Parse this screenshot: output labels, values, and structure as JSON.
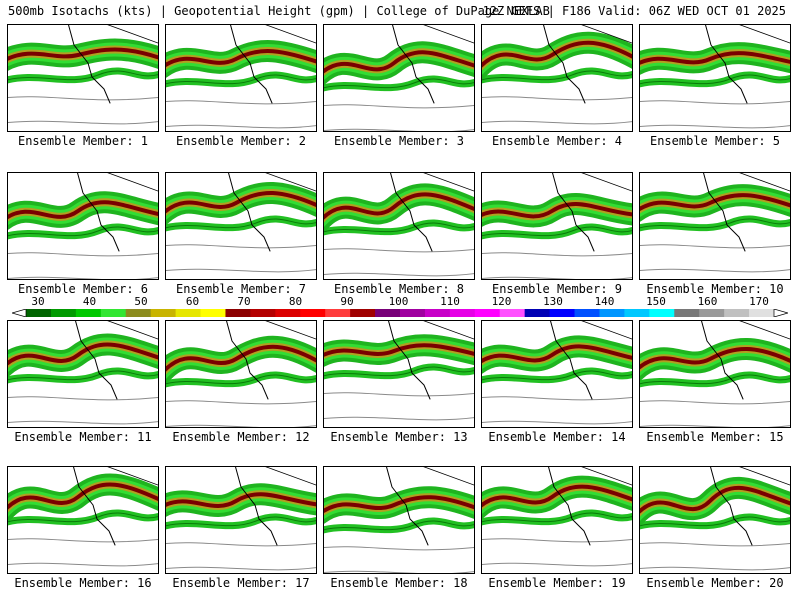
{
  "header": {
    "left": "500mb Isotachs (kts) | Geopotential Height (gpm) | College of DuPage NEXLAB",
    "right": "12Z GEFS | F186 Valid: 06Z WED OCT 01 2025"
  },
  "panels": [
    {
      "label": "Ensemble Member: 1"
    },
    {
      "label": "Ensemble Member: 2"
    },
    {
      "label": "Ensemble Member: 3"
    },
    {
      "label": "Ensemble Member: 4"
    },
    {
      "label": "Ensemble Member: 5"
    },
    {
      "label": "Ensemble Member: 6"
    },
    {
      "label": "Ensemble Member: 7"
    },
    {
      "label": "Ensemble Member: 8"
    },
    {
      "label": "Ensemble Member: 9"
    },
    {
      "label": "Ensemble Member: 10"
    },
    {
      "label": "Ensemble Member: 11"
    },
    {
      "label": "Ensemble Member: 12"
    },
    {
      "label": "Ensemble Member: 13"
    },
    {
      "label": "Ensemble Member: 14"
    },
    {
      "label": "Ensemble Member: 15"
    },
    {
      "label": "Ensemble Member: 16"
    },
    {
      "label": "Ensemble Member: 17"
    },
    {
      "label": "Ensemble Member: 18"
    },
    {
      "label": "Ensemble Member: 19"
    },
    {
      "label": "Ensemble Member: 20"
    }
  ],
  "colorbar": {
    "labels": [
      "30",
      "40",
      "50",
      "60",
      "70",
      "80",
      "90",
      "100",
      "110",
      "120",
      "130",
      "140",
      "150",
      "160",
      "170"
    ],
    "colors": [
      "#006400",
      "#009a00",
      "#00c800",
      "#32e632",
      "#8c8c1e",
      "#c8b400",
      "#e6e600",
      "#ffff00",
      "#8c0000",
      "#b40000",
      "#dc0000",
      "#ff0000",
      "#ff3c3c",
      "#a00000",
      "#780078",
      "#a000a0",
      "#c800c8",
      "#e600e6",
      "#ff00ff",
      "#ff50ff",
      "#0000b4",
      "#0000ff",
      "#0050ff",
      "#0096ff",
      "#00c8ff",
      "#00ffff",
      "#787878",
      "#9a9a9a",
      "#c0c0c0",
      "#e0e0e0"
    ]
  }
}
